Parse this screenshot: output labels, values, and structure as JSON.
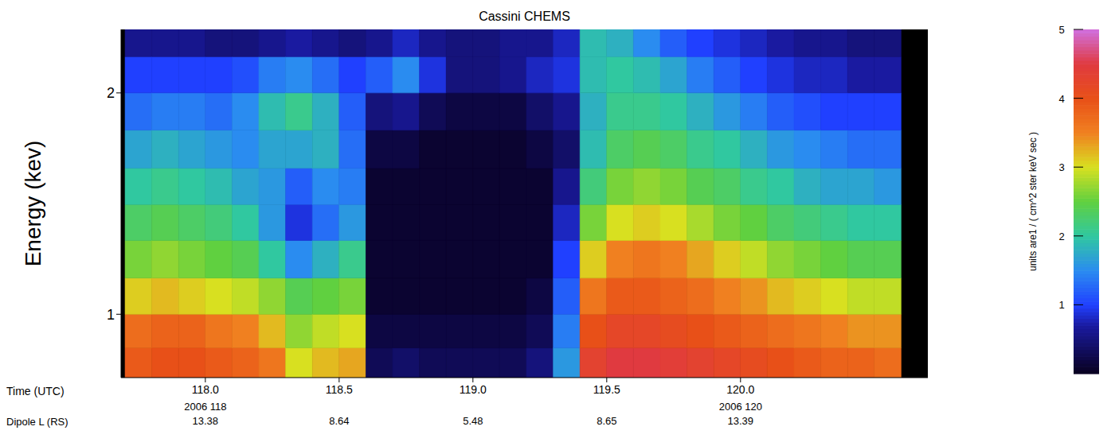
{
  "chart_data": {
    "type": "heatmap",
    "title": "Cassini CHEMS",
    "y_label": "Energy (kev)",
    "x_label": "Time (UTC)",
    "xlim": [
      117.685,
      120.7
    ],
    "ylim": [
      0.82,
      2.44
    ],
    "log": "y",
    "xticks": [
      {
        "value": 118,
        "label": "118.0"
      },
      {
        "value": 118.5,
        "label": "118.5"
      },
      {
        "value": 119,
        "label": "119.0"
      },
      {
        "value": 119.5,
        "label": "119.5"
      },
      {
        "value": 120,
        "label": "120.0"
      }
    ],
    "yticks": [
      1,
      2
    ],
    "x_sublabels": [
      {
        "value": 118,
        "label": "2006 118"
      },
      {
        "value": 120,
        "label": "2006 120"
      }
    ],
    "dipole_L_label": "Dipole L (RS)",
    "dipole_L": [
      {
        "x": 118,
        "L": 13.38
      },
      {
        "x": 118.5,
        "L": 8.64
      },
      {
        "x": 119,
        "L": 5.48
      },
      {
        "x": 119.5,
        "L": 8.65
      },
      {
        "x": 120,
        "L": 13.39
      }
    ],
    "heatmap": {
      "x_edges": [
        117.7,
        117.8,
        117.9,
        118.0,
        118.1,
        118.2,
        118.3,
        118.4,
        118.5,
        118.6,
        118.7,
        118.8,
        118.9,
        119.0,
        119.1,
        119.2,
        119.3,
        119.4,
        119.5,
        119.6,
        119.7,
        119.8,
        119.9,
        120.0,
        120.1,
        120.2,
        120.3,
        120.4,
        120.5,
        120.6
      ],
      "y_edges": [
        0.82,
        0.9,
        1.0,
        1.12,
        1.26,
        1.41,
        1.58,
        1.78,
        2.0,
        2.24,
        2.44
      ],
      "cells": [
        [
          3.9,
          3.7,
          3.1,
          2.6,
          2.3,
          2.0,
          1.7,
          1.3,
          1.0,
          0.6
        ],
        [
          4.0,
          3.8,
          3.2,
          2.7,
          2.4,
          2.1,
          1.8,
          1.4,
          1.0,
          0.6
        ],
        [
          4.0,
          3.8,
          3.1,
          2.6,
          2.3,
          2.0,
          1.7,
          1.4,
          1.0,
          0.6
        ],
        [
          3.9,
          3.6,
          3.0,
          2.5,
          2.2,
          1.9,
          1.6,
          1.3,
          1.0,
          0.5
        ],
        [
          3.8,
          3.5,
          2.9,
          2.4,
          2.0,
          1.7,
          1.5,
          1.5,
          1.1,
          0.5
        ],
        [
          3.6,
          3.2,
          2.7,
          2.0,
          1.6,
          1.6,
          1.7,
          1.9,
          1.4,
          0.6
        ],
        [
          3.0,
          2.7,
          2.4,
          1.5,
          0.9,
          1.2,
          1.7,
          2.1,
          1.5,
          0.7
        ],
        [
          3.2,
          2.9,
          2.5,
          1.8,
          1.3,
          1.5,
          1.8,
          1.8,
          1.3,
          0.6
        ],
        [
          3.3,
          3.0,
          2.6,
          2.1,
          1.6,
          1.4,
          1.3,
          1.2,
          1.0,
          0.5
        ],
        [
          0.3,
          0.2,
          0.1,
          0.1,
          0.1,
          0.1,
          0.2,
          0.5,
          1.2,
          0.6
        ],
        [
          0.4,
          0.2,
          0.1,
          0.1,
          0.1,
          0.1,
          0.2,
          0.6,
          1.5,
          0.8
        ],
        [
          0.3,
          0.2,
          0.1,
          0.1,
          0.1,
          0.1,
          0.1,
          0.3,
          0.9,
          0.6
        ],
        [
          0.3,
          0.2,
          0.1,
          0.1,
          0.1,
          0.1,
          0.1,
          0.2,
          0.5,
          0.5
        ],
        [
          0.3,
          0.2,
          0.1,
          0.1,
          0.1,
          0.1,
          0.1,
          0.2,
          0.5,
          0.5
        ],
        [
          0.3,
          0.2,
          0.1,
          0.1,
          0.1,
          0.1,
          0.1,
          0.2,
          0.6,
          0.6
        ],
        [
          0.5,
          0.3,
          0.2,
          0.1,
          0.1,
          0.1,
          0.2,
          0.4,
          0.8,
          0.6
        ],
        [
          1.6,
          1.4,
          1.2,
          1.0,
          0.8,
          0.6,
          0.4,
          0.6,
          0.9,
          0.8
        ],
        [
          4.3,
          4.0,
          3.6,
          3.1,
          2.6,
          2.2,
          1.9,
          1.8,
          1.9,
          1.9
        ],
        [
          4.5,
          4.2,
          3.9,
          3.5,
          3.0,
          2.6,
          2.3,
          2.1,
          2.0,
          1.8
        ],
        [
          4.5,
          4.2,
          3.9,
          3.6,
          3.1,
          2.7,
          2.4,
          2.1,
          1.9,
          1.5
        ],
        [
          4.4,
          4.1,
          3.8,
          3.5,
          3.0,
          2.6,
          2.3,
          2.0,
          1.7,
          1.2
        ],
        [
          4.3,
          4.0,
          3.7,
          3.3,
          2.8,
          2.4,
          2.1,
          1.8,
          1.4,
          1.0
        ],
        [
          4.2,
          3.9,
          3.5,
          3.1,
          2.6,
          2.3,
          2.0,
          1.6,
          1.2,
          0.9
        ],
        [
          4.1,
          3.8,
          3.4,
          2.9,
          2.5,
          2.1,
          1.8,
          1.4,
          1.0,
          0.8
        ],
        [
          4.0,
          3.7,
          3.2,
          2.7,
          2.3,
          2.0,
          1.6,
          1.2,
          0.9,
          0.7
        ],
        [
          3.9,
          3.6,
          3.1,
          2.6,
          2.2,
          1.8,
          1.5,
          1.1,
          0.8,
          0.6
        ],
        [
          3.8,
          3.5,
          3.0,
          2.5,
          2.1,
          1.7,
          1.4,
          1.0,
          0.8,
          0.6
        ],
        [
          3.8,
          3.4,
          2.9,
          2.4,
          2.0,
          1.7,
          1.3,
          1.0,
          0.7,
          0.5
        ],
        [
          3.7,
          3.4,
          2.9,
          2.4,
          2.0,
          1.6,
          1.3,
          1.0,
          0.7,
          0.5
        ]
      ]
    },
    "colorbar": {
      "range": [
        0,
        5
      ],
      "ticks": [
        1,
        2,
        3,
        4,
        5
      ],
      "label": "units are1 / ( cm^2 ster keV sec )"
    }
  }
}
